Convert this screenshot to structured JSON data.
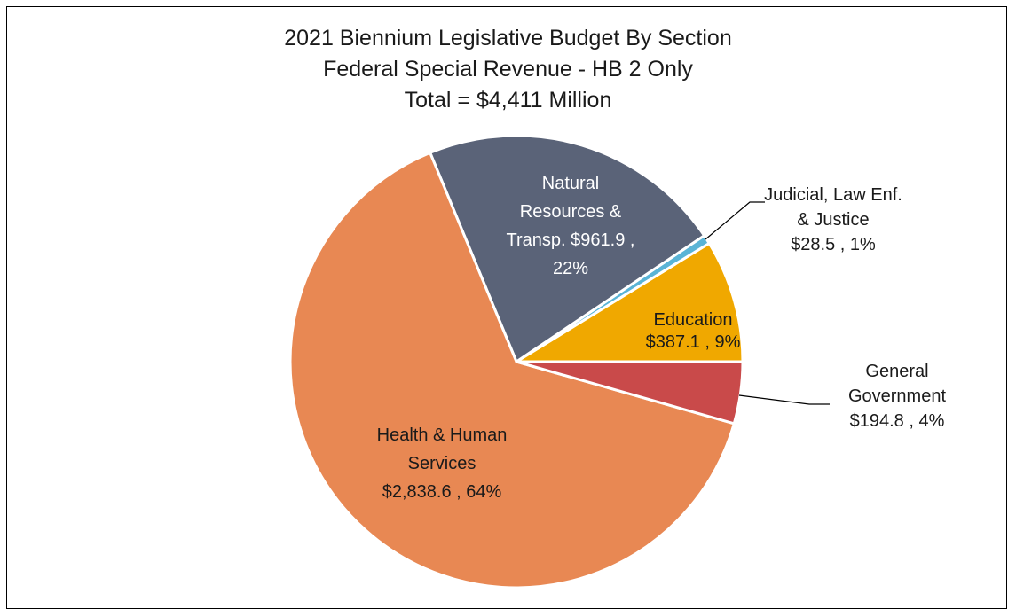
{
  "chart_data": {
    "type": "pie",
    "title": [
      "2021 Biennium Legislative Budget By Section",
      "Federal Special Revenue - HB 2 Only",
      "Total = $4,411 Million"
    ],
    "unit": "$ Million",
    "slices": [
      {
        "name": "Education",
        "value": 387.1,
        "percent": 9,
        "color": "#f0a800",
        "label_lines": [
          "Education",
          "$387.1 , 9%"
        ],
        "label_position": "inside",
        "label_color": "#1a1a1a"
      },
      {
        "name": "Judicial, Law Enf. & Justice",
        "value": 28.5,
        "percent": 1,
        "color": "#5ab4d6",
        "label_lines": [
          "Judicial, Law Enf.",
          "& Justice",
          "$28.5 , 1%"
        ],
        "label_position": "outside",
        "label_color": "#1a1a1a"
      },
      {
        "name": "Natural Resources & Transp.",
        "value": 961.9,
        "percent": 22,
        "color": "#5a6378",
        "label_lines": [
          "Natural",
          "Resources &",
          "Transp. $961.9 ,",
          "22%"
        ],
        "label_position": "inside",
        "label_color": "#ffffff"
      },
      {
        "name": "Health & Human Services",
        "value": 2838.6,
        "percent": 64,
        "color": "#e88853",
        "label_lines": [
          "Health & Human",
          "Services",
          "$2,838.6 , 64%"
        ],
        "label_position": "inside",
        "label_color": "#1a1a1a"
      },
      {
        "name": "General Government",
        "value": 194.8,
        "percent": 4,
        "color": "#c94a4a",
        "label_lines": [
          "General",
          "Government",
          "$194.8 , 4%"
        ],
        "label_position": "outside",
        "label_color": "#1a1a1a"
      }
    ],
    "start_angle": "3 o'clock",
    "direction": "counterclockwise",
    "legend": "none"
  }
}
